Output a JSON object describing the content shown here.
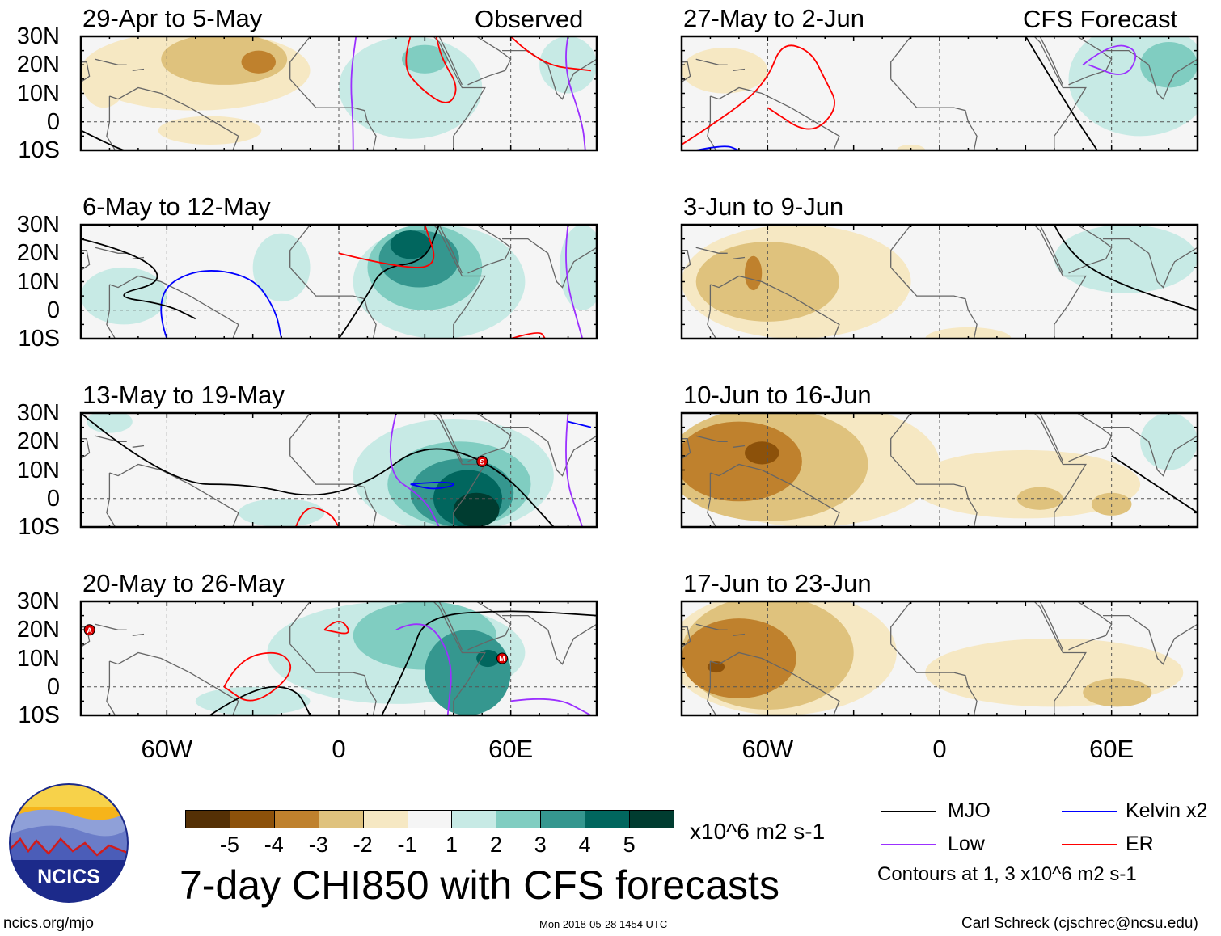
{
  "header": {
    "left_label": "Observed",
    "right_label": "CFS Forecast"
  },
  "lat_labels": [
    "30N",
    "20N",
    "10N",
    "0",
    "10S"
  ],
  "lon_labels": [
    "60W",
    "0",
    "60E"
  ],
  "colors": {
    "-5": "#543005",
    "-4": "#8c510a",
    "-3": "#bf812d",
    "-2": "#dfc27d",
    "-1": "#f6e8c3",
    "0": "#f5f5f5",
    "1": "#c7eae5",
    "2": "#80cdc1",
    "3": "#35978f",
    "4": "#01665e",
    "5": "#003c30",
    "MJO": "#000000",
    "Low": "#9b30ff",
    "Kelvin": "#0000ff",
    "ER": "#ff0000"
  },
  "colorbar": {
    "labels": [
      "-5",
      "-4",
      "-3",
      "-2",
      "-1",
      "1",
      "2",
      "3",
      "4",
      "5"
    ],
    "levels": [
      -5,
      -4,
      -3,
      -2,
      -1,
      0,
      1,
      2,
      3,
      4,
      5
    ],
    "units": "x10^6 m2 s-1"
  },
  "title": "7-day CHI850 with CFS forecasts",
  "legend": {
    "items": [
      {
        "label": "MJO",
        "key": "MJO"
      },
      {
        "label": "Kelvin x2",
        "key": "Kelvin"
      },
      {
        "label": "Low",
        "key": "Low"
      },
      {
        "label": "ER",
        "key": "ER"
      }
    ],
    "note": "Contours at 1, 3 x10^6 m2 s-1"
  },
  "logo_text": "NCICS",
  "footer": {
    "url": "ncics.org/mjo",
    "timestamp": "Mon 2018-05-28 1454 UTC",
    "author": "Carl Schreck (cjschrec@ncsu.edu)"
  },
  "chart_data": {
    "type": "heatmap",
    "variable": "CHI850 anomaly",
    "lon_range": [
      -90,
      90
    ],
    "lat_range": [
      -10,
      30
    ],
    "panels": [
      {
        "title": "29-Apr to 5-May",
        "col": 0,
        "row": 0,
        "blobs": [
          [
            -50,
            18,
            40,
            14,
            -1
          ],
          [
            -40,
            22,
            22,
            9,
            -2
          ],
          [
            -28,
            21,
            6,
            4,
            -3
          ],
          [
            -82,
            15,
            8,
            10,
            -1
          ],
          [
            -45,
            -3,
            18,
            5,
            -1
          ],
          [
            25,
            12,
            25,
            18,
            1
          ],
          [
            30,
            22,
            8,
            5,
            2
          ],
          [
            80,
            20,
            10,
            10,
            1
          ]
        ],
        "contours": [
          [
            "Low",
            [
              [
                5,
                -10
              ],
              [
                5,
                0
              ],
              [
                4,
                15
              ],
              [
                6,
                30
              ]
            ]
          ],
          [
            "ER",
            [
              [
                25,
                30
              ],
              [
                22,
                20
              ],
              [
                28,
                12
              ],
              [
                38,
                5
              ],
              [
                42,
                12
              ],
              [
                36,
                22
              ],
              [
                34,
                30
              ]
            ]
          ],
          [
            "ER",
            [
              [
                60,
                30
              ],
              [
                70,
                20
              ],
              [
                88,
                18
              ]
            ]
          ],
          [
            "MJO",
            [
              [
                -90,
                -3
              ],
              [
                -80,
                -8
              ],
              [
                -75,
                -10
              ]
            ]
          ],
          [
            "Low",
            [
              [
                80,
                30
              ],
              [
                78,
                20
              ],
              [
                85,
                0
              ],
              [
                86,
                -10
              ]
            ]
          ]
        ],
        "storms": []
      },
      {
        "title": "6-May to 12-May",
        "col": 0,
        "row": 1,
        "blobs": [
          [
            35,
            10,
            30,
            20,
            1
          ],
          [
            30,
            15,
            20,
            15,
            2
          ],
          [
            28,
            18,
            14,
            10,
            3
          ],
          [
            25,
            23,
            7,
            5,
            4
          ],
          [
            -75,
            5,
            15,
            10,
            1
          ],
          [
            85,
            15,
            8,
            15,
            1
          ],
          [
            -20,
            15,
            10,
            12,
            1
          ]
        ],
        "contours": [
          [
            "Kelvin",
            [
              [
                -60,
                -10
              ],
              [
                -65,
                5
              ],
              [
                -50,
                15
              ],
              [
                -30,
                12
              ],
              [
                -22,
                0
              ],
              [
                -20,
                -10
              ]
            ]
          ],
          [
            "MJO",
            [
              [
                -90,
                25
              ],
              [
                -70,
                20
              ],
              [
                -60,
                10
              ],
              [
                -80,
                5
              ],
              [
                -60,
                2
              ],
              [
                -50,
                -3
              ]
            ]
          ],
          [
            "MJO",
            [
              [
                0,
                -10
              ],
              [
                10,
                5
              ],
              [
                15,
                15
              ],
              [
                30,
                17
              ],
              [
                35,
                30
              ]
            ]
          ],
          [
            "ER",
            [
              [
                0,
                20
              ],
              [
                20,
                15
              ],
              [
                35,
                15
              ],
              [
                30,
                30
              ]
            ]
          ],
          [
            "ER",
            [
              [
                60,
                -10
              ],
              [
                70,
                -7
              ],
              [
                72,
                -10
              ]
            ]
          ],
          [
            "Low",
            [
              [
                80,
                30
              ],
              [
                78,
                15
              ],
              [
                85,
                -10
              ]
            ]
          ]
        ],
        "storms": []
      },
      {
        "title": "13-May to 19-May",
        "col": 0,
        "row": 2,
        "blobs": [
          [
            40,
            8,
            35,
            20,
            1
          ],
          [
            42,
            5,
            25,
            15,
            2
          ],
          [
            43,
            2,
            18,
            12,
            3
          ],
          [
            45,
            0,
            12,
            10,
            4
          ],
          [
            48,
            -4,
            8,
            6,
            5
          ],
          [
            -80,
            27,
            8,
            4,
            1
          ],
          [
            -20,
            -5,
            15,
            5,
            1
          ]
        ],
        "contours": [
          [
            "MJO",
            [
              [
                -90,
                30
              ],
              [
                -60,
                5
              ],
              [
                -30,
                5
              ],
              [
                -10,
                0
              ],
              [
                10,
                5
              ],
              [
                30,
                20
              ],
              [
                55,
                12
              ],
              [
                75,
                -10
              ]
            ]
          ],
          [
            "Kelvin",
            [
              [
                25,
                5
              ],
              [
                35,
                6
              ],
              [
                42,
                5
              ],
              [
                33,
                3
              ],
              [
                25,
                5
              ]
            ]
          ],
          [
            "ER",
            [
              [
                -15,
                -10
              ],
              [
                -12,
                -2
              ],
              [
                -3,
                -5
              ],
              [
                0,
                -10
              ]
            ]
          ],
          [
            "Low",
            [
              [
                20,
                30
              ],
              [
                15,
                10
              ],
              [
                30,
                0
              ],
              [
                35,
                -10
              ]
            ]
          ],
          [
            "Low",
            [
              [
                80,
                30
              ],
              [
                78,
                10
              ],
              [
                85,
                -10
              ]
            ]
          ],
          [
            "Kelvin",
            [
              [
                80,
                27
              ],
              [
                88,
                25
              ]
            ]
          ]
        ],
        "storms": [
          [
            50,
            13,
            "S"
          ]
        ]
      },
      {
        "title": "20-May to 26-May",
        "col": 0,
        "row": 3,
        "blobs": [
          [
            20,
            12,
            45,
            18,
            1
          ],
          [
            30,
            18,
            25,
            12,
            2
          ],
          [
            45,
            5,
            15,
            15,
            3
          ],
          [
            52,
            10,
            4,
            3,
            4
          ],
          [
            -30,
            -5,
            20,
            5,
            1
          ]
        ],
        "contours": [
          [
            "MJO",
            [
              [
                -45,
                -10
              ],
              [
                -30,
                0
              ],
              [
                -15,
                0
              ],
              [
                -10,
                -10
              ]
            ]
          ],
          [
            "MJO",
            [
              [
                15,
                -10
              ],
              [
                25,
                10
              ],
              [
                30,
                25
              ],
              [
                60,
                27
              ],
              [
                90,
                25
              ]
            ]
          ],
          [
            "ER",
            [
              [
                -40,
                0
              ],
              [
                -35,
                10
              ],
              [
                -20,
                13
              ],
              [
                -15,
                5
              ],
              [
                -30,
                -7
              ],
              [
                -40,
                0
              ]
            ]
          ],
          [
            "ER",
            [
              [
                -5,
                20
              ],
              [
                0,
                25
              ],
              [
                5,
                18
              ],
              [
                -5,
                20
              ]
            ]
          ],
          [
            "Low",
            [
              [
                20,
                20
              ],
              [
                30,
                25
              ],
              [
                40,
                10
              ],
              [
                38,
                -10
              ]
            ]
          ],
          [
            "Low",
            [
              [
                60,
                -5
              ],
              [
                75,
                -3
              ],
              [
                88,
                -10
              ]
            ]
          ]
        ],
        "storms": [
          [
            -87,
            20,
            "A"
          ],
          [
            57,
            10,
            "M"
          ]
        ]
      },
      {
        "title": "27-May to 2-Jun",
        "col": 1,
        "row": 0,
        "blobs": [
          [
            -75,
            18,
            15,
            8,
            -1
          ],
          [
            70,
            15,
            25,
            20,
            1
          ],
          [
            80,
            20,
            10,
            8,
            2
          ],
          [
            -10,
            -10,
            5,
            2,
            -1
          ]
        ],
        "contours": [
          [
            "ER",
            [
              [
                -90,
                -8
              ],
              [
                -70,
                5
              ],
              [
                -60,
                15
              ],
              [
                -55,
                28
              ],
              [
                -45,
                25
              ],
              [
                -40,
                15
              ],
              [
                -35,
                5
              ],
              [
                -45,
                -5
              ],
              [
                -60,
                5
              ]
            ]
          ],
          [
            "Low",
            [
              [
                50,
                20
              ],
              [
                60,
                28
              ],
              [
                70,
                25
              ],
              [
                65,
                15
              ],
              [
                52,
                20
              ]
            ]
          ],
          [
            "MJO",
            [
              [
                30,
                30
              ],
              [
                45,
                5
              ],
              [
                55,
                -10
              ]
            ]
          ],
          [
            "Kelvin",
            [
              [
                -85,
                -10
              ],
              [
                -75,
                -8
              ],
              [
                -70,
                -10
              ]
            ]
          ]
        ],
        "storms": []
      },
      {
        "title": "3-Jun to 9-Jun",
        "col": 1,
        "row": 1,
        "blobs": [
          [
            -50,
            10,
            40,
            20,
            -1
          ],
          [
            -60,
            10,
            25,
            14,
            -2
          ],
          [
            -65,
            13,
            3,
            6,
            -3
          ],
          [
            65,
            18,
            25,
            12,
            1
          ],
          [
            10,
            -10,
            15,
            4,
            -1
          ]
        ],
        "contours": [
          [
            "MJO",
            [
              [
                40,
                30
              ],
              [
                45,
                20
              ],
              [
                60,
                10
              ],
              [
                90,
                0
              ]
            ]
          ]
        ],
        "storms": []
      },
      {
        "title": "10-Jun to 16-Jun",
        "col": 1,
        "row": 2,
        "blobs": [
          [
            -45,
            12,
            45,
            22,
            -1
          ],
          [
            -60,
            12,
            35,
            20,
            -2
          ],
          [
            -70,
            13,
            22,
            14,
            -3
          ],
          [
            -62,
            16,
            6,
            4,
            -4
          ],
          [
            30,
            5,
            40,
            12,
            -1
          ],
          [
            35,
            0,
            8,
            4,
            -2
          ],
          [
            60,
            -2,
            7,
            4,
            -2
          ],
          [
            80,
            20,
            10,
            10,
            1
          ]
        ],
        "contours": [
          [
            "MJO",
            [
              [
                60,
                15
              ],
              [
                75,
                5
              ],
              [
                90,
                -5
              ]
            ]
          ]
        ],
        "storms": []
      },
      {
        "title": "17-Jun to 23-Jun",
        "col": 1,
        "row": 3,
        "blobs": [
          [
            -55,
            12,
            40,
            22,
            -1
          ],
          [
            -60,
            12,
            30,
            20,
            -2
          ],
          [
            -70,
            10,
            20,
            14,
            -3
          ],
          [
            -78,
            7,
            3,
            2,
            -4
          ],
          [
            40,
            5,
            45,
            12,
            -1
          ],
          [
            62,
            -2,
            12,
            5,
            -2
          ]
        ],
        "contours": [],
        "storms": []
      }
    ]
  }
}
